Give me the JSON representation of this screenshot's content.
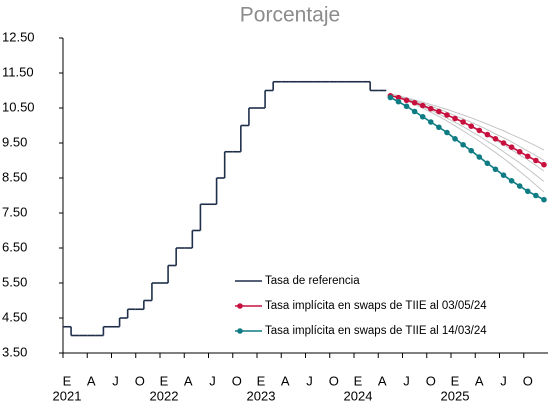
{
  "chart_data": {
    "type": "line",
    "title": "Porcentaje",
    "categories": [
      "E",
      null,
      null,
      "A",
      null,
      null,
      "J",
      null,
      null,
      "O",
      null,
      null,
      "E",
      null,
      null,
      "A",
      null,
      null,
      "J",
      null,
      null,
      "O",
      null,
      null,
      "E",
      null,
      null,
      "A",
      null,
      null,
      "J",
      null,
      null,
      "O",
      null,
      null,
      "E",
      null,
      null,
      "A",
      null,
      null,
      "J",
      null,
      null,
      "O",
      null,
      null,
      "E",
      null,
      null,
      "A",
      null,
      null,
      "J",
      null,
      null,
      "O",
      null,
      null
    ],
    "years": [
      "2021",
      "2022",
      "2023",
      "2024",
      "2025"
    ],
    "ylim": [
      3.5,
      12.5
    ],
    "yticks": [
      {
        "value": 3.5,
        "label": "3.50"
      },
      {
        "value": 4.5,
        "label": "4.50"
      },
      {
        "value": 5.5,
        "label": "5.50"
      },
      {
        "value": 6.5,
        "label": "6.50"
      },
      {
        "value": 7.5,
        "label": "7.50"
      },
      {
        "value": 8.5,
        "label": "8.50"
      },
      {
        "value": 9.5,
        "label": "9.50"
      },
      {
        "value": 10.5,
        "label": "10.50"
      },
      {
        "value": 11.5,
        "label": "11.50"
      },
      {
        "value": 12.5,
        "label": "12.50"
      }
    ],
    "legend": "lower right",
    "series": [
      {
        "name": "Tasa de referencia",
        "color": "#1f2f4a",
        "step": true,
        "values": [
          4.25,
          4.0,
          4.0,
          4.0,
          4.0,
          4.25,
          4.25,
          4.5,
          4.75,
          4.75,
          5.0,
          5.5,
          5.5,
          6.0,
          6.5,
          6.5,
          7.0,
          7.75,
          7.75,
          8.5,
          9.25,
          9.25,
          10.0,
          10.5,
          10.5,
          11.0,
          11.25,
          11.25,
          11.25,
          11.25,
          11.25,
          11.25,
          11.25,
          11.25,
          11.25,
          11.25,
          11.25,
          11.25,
          11.0,
          11.0,
          null,
          null,
          null,
          null,
          null,
          null,
          null,
          null,
          null,
          null,
          null,
          null,
          null,
          null,
          null,
          null,
          null,
          null,
          null,
          null
        ]
      },
      {
        "name": "Tasa implícita en swaps de TIIE al 03/05/24",
        "color": "#c8103e",
        "markers": true,
        "values": [
          null,
          null,
          null,
          null,
          null,
          null,
          null,
          null,
          null,
          null,
          null,
          null,
          null,
          null,
          null,
          null,
          null,
          null,
          null,
          null,
          null,
          null,
          null,
          null,
          null,
          null,
          null,
          null,
          null,
          null,
          null,
          null,
          null,
          null,
          null,
          null,
          null,
          null,
          null,
          null,
          10.85,
          10.8,
          10.72,
          10.65,
          10.57,
          10.48,
          10.4,
          10.3,
          10.2,
          10.1,
          9.98,
          9.86,
          9.74,
          9.62,
          9.5,
          9.38,
          9.25,
          9.12,
          9.0,
          8.88
        ]
      },
      {
        "name": "Tasa implícita en swaps de TIIE al 14/03/24",
        "color": "#0f7c84",
        "markers": true,
        "values": [
          null,
          null,
          null,
          null,
          null,
          null,
          null,
          null,
          null,
          null,
          null,
          null,
          null,
          null,
          null,
          null,
          null,
          null,
          null,
          null,
          null,
          null,
          null,
          null,
          null,
          null,
          null,
          null,
          null,
          null,
          null,
          null,
          null,
          null,
          null,
          null,
          null,
          null,
          null,
          null,
          10.8,
          10.68,
          10.55,
          10.4,
          10.25,
          10.1,
          9.95,
          9.8,
          9.62,
          9.45,
          9.28,
          9.1,
          8.92,
          8.75,
          8.58,
          8.42,
          8.27,
          8.12,
          8.0,
          7.88
        ]
      },
      {
        "color": "#c4c4c4",
        "values": [
          null,
          null,
          null,
          null,
          null,
          null,
          null,
          null,
          null,
          null,
          null,
          null,
          null,
          null,
          null,
          null,
          null,
          null,
          null,
          null,
          null,
          null,
          null,
          null,
          null,
          null,
          null,
          null,
          null,
          null,
          null,
          null,
          null,
          null,
          null,
          null,
          null,
          null,
          null,
          null,
          10.9,
          10.85,
          10.79,
          10.73,
          10.67,
          10.6,
          10.53,
          10.46,
          10.38,
          10.3,
          10.22,
          10.13,
          10.04,
          9.94,
          9.85,
          9.74,
          9.64,
          9.53,
          9.42,
          9.3
        ]
      },
      {
        "color": "#c4c4c4",
        "values": [
          null,
          null,
          null,
          null,
          null,
          null,
          null,
          null,
          null,
          null,
          null,
          null,
          null,
          null,
          null,
          null,
          null,
          null,
          null,
          null,
          null,
          null,
          null,
          null,
          null,
          null,
          null,
          null,
          null,
          null,
          null,
          null,
          null,
          null,
          null,
          null,
          null,
          null,
          null,
          null,
          10.9,
          10.84,
          10.77,
          10.7,
          10.63,
          10.55,
          10.47,
          10.38,
          10.28,
          10.19,
          10.09,
          9.99,
          9.88,
          9.76,
          9.65,
          9.53,
          9.4,
          9.27,
          9.14,
          9.0
        ]
      },
      {
        "color": "#c4c4c4",
        "values": [
          null,
          null,
          null,
          null,
          null,
          null,
          null,
          null,
          null,
          null,
          null,
          null,
          null,
          null,
          null,
          null,
          null,
          null,
          null,
          null,
          null,
          null,
          null,
          null,
          null,
          null,
          null,
          null,
          null,
          null,
          null,
          null,
          null,
          null,
          null,
          null,
          null,
          null,
          null,
          null,
          10.9,
          10.83,
          10.75,
          10.67,
          10.58,
          10.49,
          10.4,
          10.3,
          10.19,
          10.08,
          9.96,
          9.84,
          9.71,
          9.58,
          9.45,
          9.31,
          9.16,
          9.02,
          8.86,
          8.7
        ]
      },
      {
        "color": "#c4c4c4",
        "values": [
          null,
          null,
          null,
          null,
          null,
          null,
          null,
          null,
          null,
          null,
          null,
          null,
          null,
          null,
          null,
          null,
          null,
          null,
          null,
          null,
          null,
          null,
          null,
          null,
          null,
          null,
          null,
          null,
          null,
          null,
          null,
          null,
          null,
          null,
          null,
          null,
          null,
          null,
          null,
          null,
          10.9,
          10.82,
          10.73,
          10.64,
          10.54,
          10.44,
          10.33,
          10.21,
          10.09,
          9.97,
          9.83,
          9.7,
          9.55,
          9.41,
          9.25,
          9.09,
          8.93,
          8.76,
          8.58,
          8.4
        ]
      },
      {
        "color": "#c4c4c4",
        "values": [
          null,
          null,
          null,
          null,
          null,
          null,
          null,
          null,
          null,
          null,
          null,
          null,
          null,
          null,
          null,
          null,
          null,
          null,
          null,
          null,
          null,
          null,
          null,
          null,
          null,
          null,
          null,
          null,
          null,
          null,
          null,
          null,
          null,
          null,
          null,
          null,
          null,
          null,
          null,
          null,
          10.9,
          10.81,
          10.71,
          10.61,
          10.5,
          10.38,
          10.26,
          10.13,
          9.99,
          9.85,
          9.7,
          9.55,
          9.39,
          9.23,
          9.06,
          8.88,
          8.69,
          8.5,
          8.3,
          8.1
        ]
      }
    ]
  }
}
